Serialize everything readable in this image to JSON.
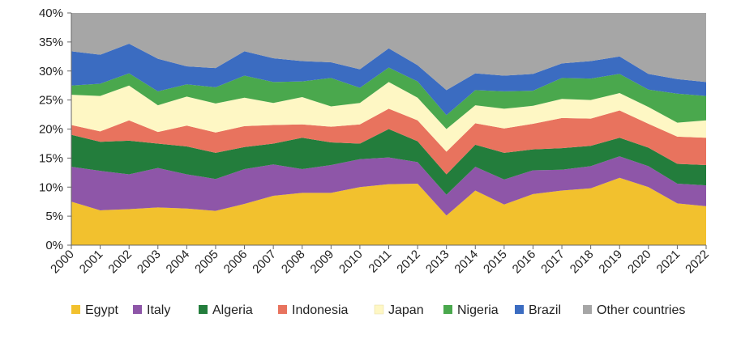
{
  "chart_data": {
    "type": "area",
    "stacked": true,
    "title": "",
    "xlabel": "",
    "ylabel": "",
    "ylim": [
      0,
      40
    ],
    "y_tick_format": "percent",
    "y_ticks": [
      "0%",
      "5%",
      "10%",
      "15%",
      "20%",
      "25%",
      "30%",
      "35%",
      "40%"
    ],
    "grid": false,
    "legend_position": "bottom",
    "x": [
      "2000",
      "2001",
      "2002",
      "2003",
      "2004",
      "2005",
      "2006",
      "2007",
      "2008",
      "2009",
      "2010",
      "2011",
      "2012",
      "2013",
      "2014",
      "2015",
      "2016",
      "2017",
      "2018",
      "2019",
      "2020",
      "2021",
      "2022"
    ],
    "series": [
      {
        "name": "Egypt",
        "color": "#f2c12e",
        "values": [
          7.5,
          6.0,
          6.2,
          6.5,
          6.3,
          5.9,
          7.1,
          8.5,
          9.0,
          9.0,
          10.0,
          10.5,
          10.6,
          5.1,
          9.4,
          7.0,
          8.8,
          9.4,
          9.8,
          11.6,
          10.0,
          7.2,
          6.7
        ]
      },
      {
        "name": "Italy",
        "color": "#8e56a8",
        "values": [
          6.0,
          6.8,
          6.0,
          6.8,
          5.9,
          5.5,
          6.0,
          5.4,
          4.1,
          4.8,
          4.8,
          4.6,
          3.7,
          3.6,
          4.1,
          4.3,
          4.1,
          3.6,
          3.8,
          3.7,
          3.6,
          3.4,
          3.6
        ]
      },
      {
        "name": "Algeria",
        "color": "#237d3c",
        "values": [
          5.5,
          5.0,
          5.8,
          4.2,
          4.8,
          4.5,
          3.8,
          3.6,
          5.4,
          3.9,
          2.7,
          4.9,
          3.6,
          3.5,
          3.8,
          4.6,
          3.6,
          3.7,
          3.5,
          3.2,
          3.2,
          3.4,
          3.5
        ]
      },
      {
        "name": "Indonesia",
        "color": "#e8735e",
        "values": [
          1.7,
          1.8,
          3.5,
          2.0,
          3.6,
          3.5,
          3.6,
          3.2,
          2.3,
          2.7,
          3.3,
          3.5,
          3.6,
          3.9,
          3.7,
          4.2,
          4.4,
          5.2,
          4.7,
          4.7,
          4.1,
          4.7,
          4.7
        ]
      },
      {
        "name": "Japan",
        "color": "#fef7c4",
        "values": [
          5.2,
          6.1,
          6.0,
          4.6,
          5.0,
          5.0,
          4.9,
          3.8,
          4.7,
          3.5,
          3.7,
          4.6,
          3.9,
          3.9,
          3.1,
          3.4,
          3.1,
          3.3,
          3.2,
          3.0,
          2.9,
          2.4,
          3.0
        ]
      },
      {
        "name": "Nigeria",
        "color": "#4aa84d",
        "values": [
          1.6,
          2.1,
          2.1,
          2.4,
          2.1,
          2.8,
          3.8,
          3.6,
          2.7,
          4.9,
          2.6,
          2.5,
          2.8,
          2.4,
          2.6,
          3.0,
          2.6,
          3.6,
          3.7,
          3.3,
          3.0,
          5.0,
          4.2
        ]
      },
      {
        "name": "Brazil",
        "color": "#3b6cc1",
        "values": [
          5.9,
          5.0,
          5.1,
          5.6,
          3.1,
          3.3,
          4.2,
          4.1,
          3.5,
          2.7,
          3.2,
          3.3,
          2.8,
          4.3,
          2.9,
          2.7,
          2.9,
          2.5,
          3.0,
          3.0,
          2.7,
          2.5,
          2.4
        ]
      },
      {
        "name": "Other countries",
        "color": "#a6a6a6",
        "values": [
          6.6,
          7.2,
          5.3,
          7.9,
          9.2,
          9.5,
          6.6,
          7.8,
          8.3,
          8.5,
          9.7,
          6.1,
          9.0,
          13.3,
          10.4,
          10.8,
          10.5,
          8.7,
          8.3,
          7.5,
          10.5,
          11.4,
          11.9
        ]
      }
    ]
  }
}
